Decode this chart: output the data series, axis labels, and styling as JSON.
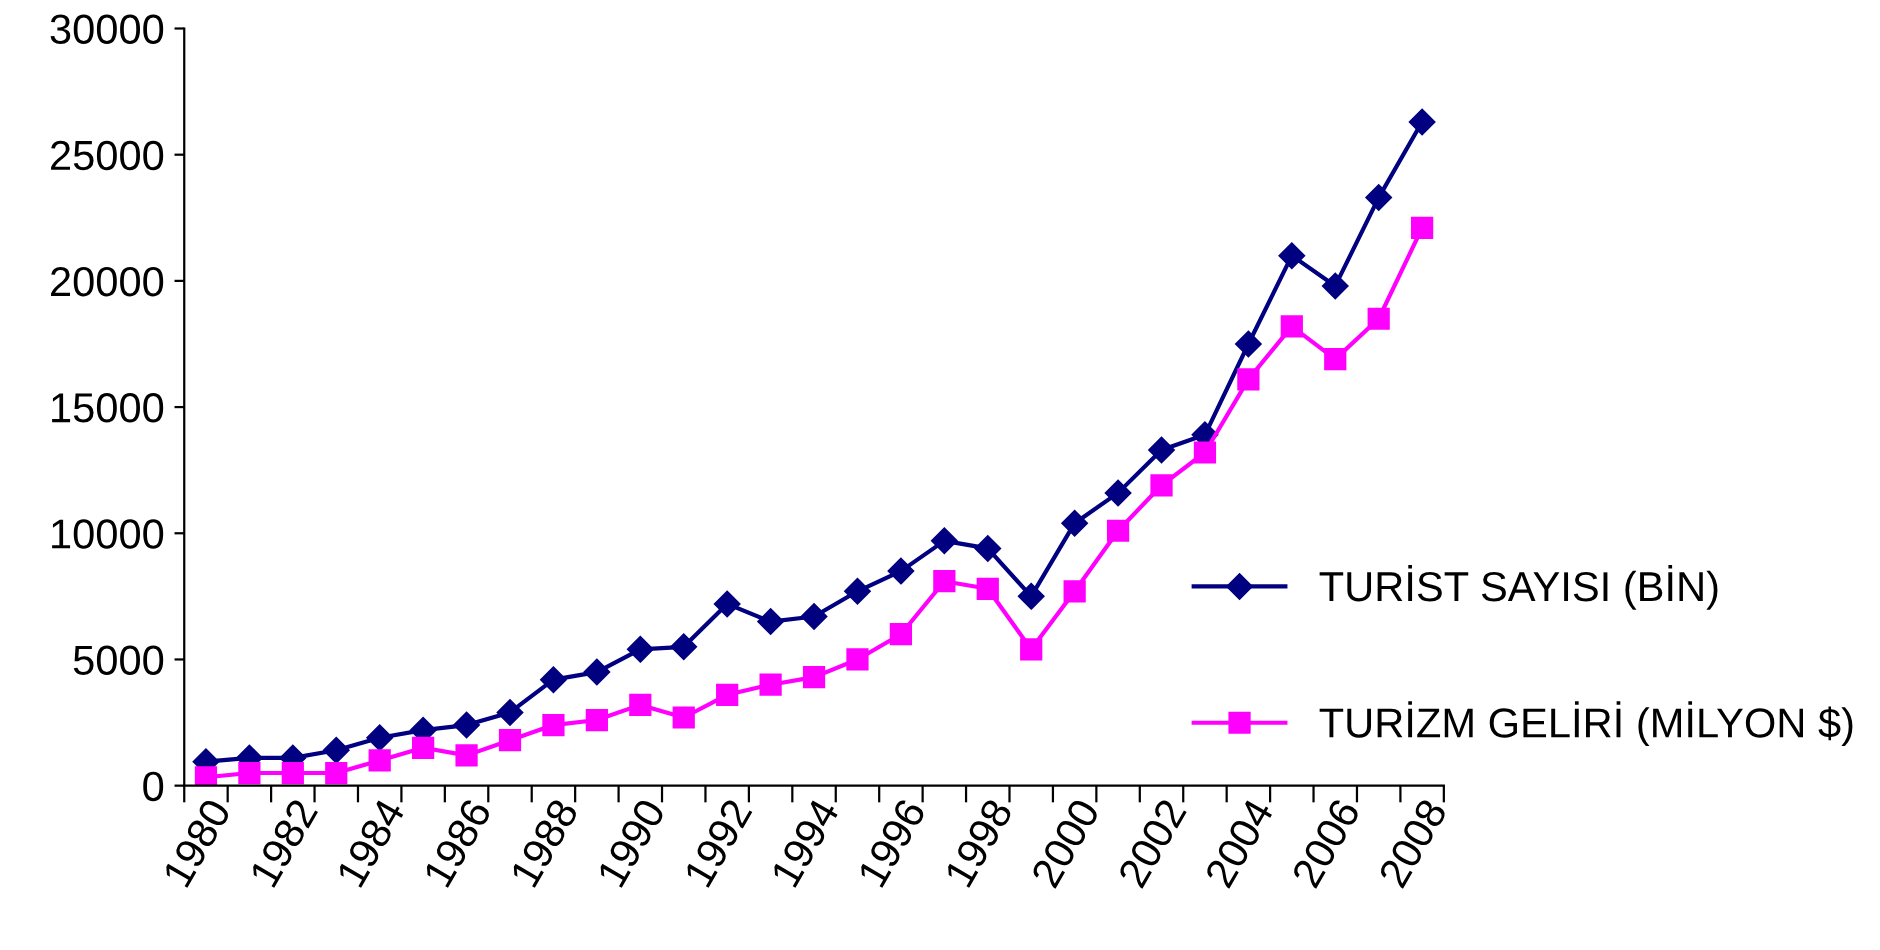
{
  "chart_data": {
    "type": "line",
    "categories": [
      "1980",
      null,
      "1982",
      null,
      "1984",
      null,
      "1986",
      null,
      "1988",
      null,
      "1990",
      null,
      "1992",
      null,
      "1994",
      null,
      "1996",
      null,
      "1998",
      null,
      "2000",
      null,
      "2002",
      null,
      "2004",
      null,
      "2006",
      null,
      "2008"
    ],
    "series": [
      {
        "name": "TURİST SAYISI (BİN)",
        "color": "#000080",
        "marker": "diamond",
        "values": [
          950,
          1100,
          1100,
          1400,
          1900,
          2200,
          2400,
          2900,
          4200,
          4500,
          5400,
          5500,
          7200,
          6500,
          6700,
          7700,
          8500,
          9700,
          9400,
          7500,
          10400,
          11600,
          13300,
          13900,
          17500,
          21000,
          19800,
          23300,
          26300
        ]
      },
      {
        "name": "TURİZM GELİRİ (MİLYON $)",
        "color": "#ff00ff",
        "marker": "square",
        "values": [
          330,
          500,
          500,
          500,
          1000,
          1500,
          1200,
          1800,
          2400,
          2600,
          3200,
          2700,
          3600,
          4000,
          4300,
          5000,
          6000,
          8100,
          7800,
          5400,
          7700,
          10100,
          11900,
          13200,
          16100,
          18200,
          16900,
          18500,
          22100
        ]
      }
    ],
    "ylim": [
      0,
      30000
    ],
    "yticks": [
      0,
      5000,
      10000,
      15000,
      20000,
      25000,
      30000
    ],
    "grid": false,
    "legend": "right"
  }
}
